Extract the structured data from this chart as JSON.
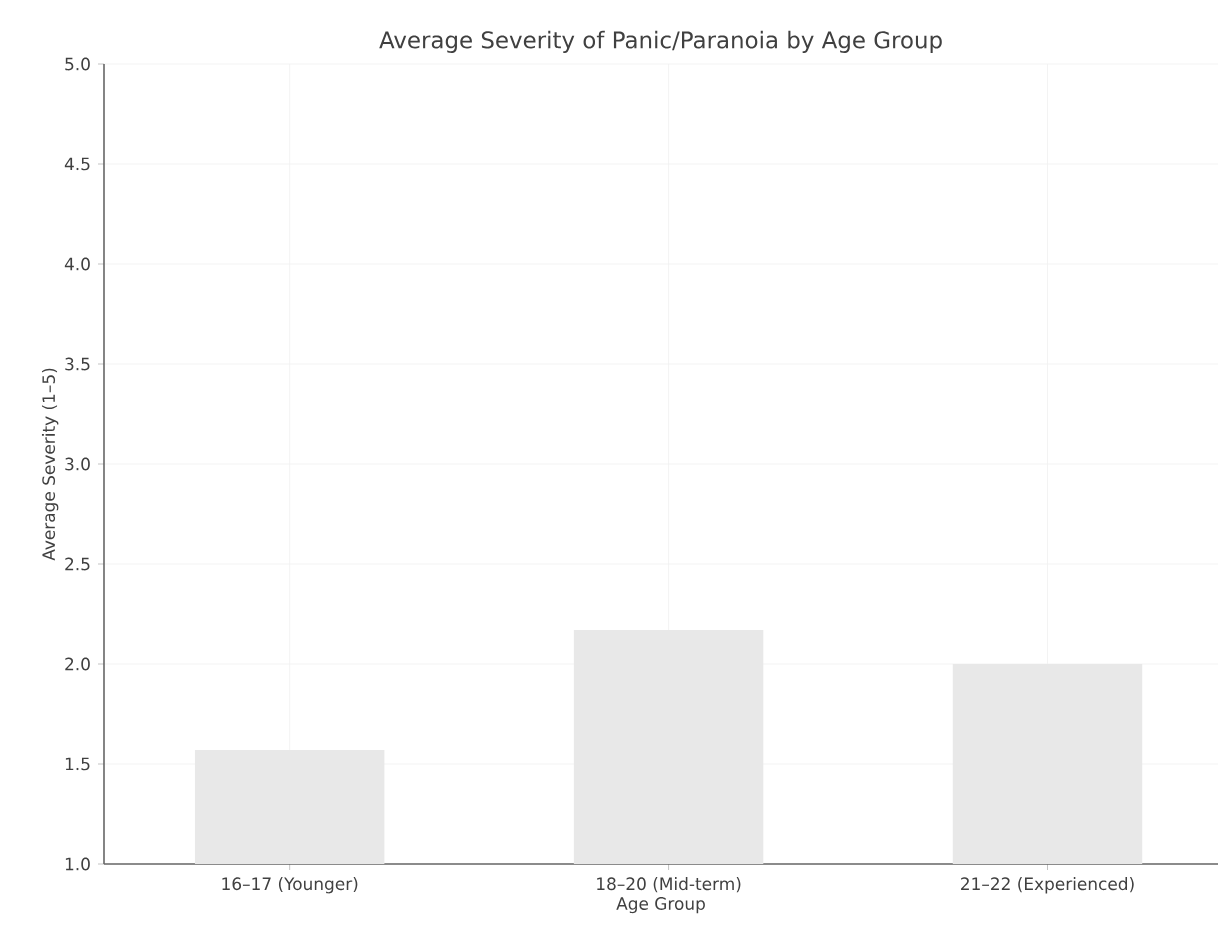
{
  "chart_data": {
    "type": "bar",
    "title": "Average Severity of Panic/Paranoia by Age Group",
    "xlabel": "Age Group",
    "ylabel": "Average Severity (1–5)",
    "categories": [
      "16–17 (Younger)",
      "18–20 (Mid-term)",
      "21–22 (Experienced)"
    ],
    "values": [
      1.57,
      2.17,
      2.0
    ],
    "color": "#e8e8e8",
    "ylim": [
      1.0,
      5.0
    ],
    "yticks": [
      {
        "value": 1,
        "label": "1.0"
      },
      1.5,
      {
        "value": 2,
        "label": "2.0"
      },
      2.5,
      {
        "value": 3,
        "label": "3.0"
      },
      3.5,
      {
        "value": 4,
        "label": "4.0"
      },
      4.5,
      {
        "value": 5,
        "label": "5.0"
      }
    ],
    "grid": true
  }
}
